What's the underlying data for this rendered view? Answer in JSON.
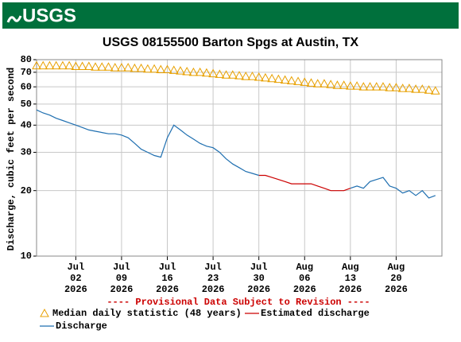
{
  "header": {
    "logo": "USGS"
  },
  "chart_data": {
    "type": "line",
    "title": "USGS 08155500 Barton Spgs at Austin, TX",
    "y_label": "Discharge, cubic feet per second",
    "note": "---- Provisional Data Subject to Revision ----",
    "yscale": "log",
    "grid": true,
    "ylim": [
      10,
      80
    ],
    "yticks": [
      10,
      20,
      30,
      40,
      50,
      60,
      70,
      80
    ],
    "xlim": [
      "2026-06-26",
      "2026-08-27"
    ],
    "xticks": [
      {
        "value": "2026-07-02",
        "label": "Jul 02 2026"
      },
      {
        "value": "2026-07-09",
        "label": "Jul 09 2026"
      },
      {
        "value": "2026-07-16",
        "label": "Jul 16 2026"
      },
      {
        "value": "2026-07-23",
        "label": "Jul 23 2026"
      },
      {
        "value": "2026-07-30",
        "label": "Jul 30 2026"
      },
      {
        "value": "2026-08-06",
        "label": "Aug 06 2026"
      },
      {
        "value": "2026-08-13",
        "label": "Aug 13 2026"
      },
      {
        "value": "2026-08-20",
        "label": "Aug 20 2026"
      }
    ],
    "x": [
      "2026-06-26",
      "2026-06-27",
      "2026-06-28",
      "2026-06-29",
      "2026-06-30",
      "2026-07-01",
      "2026-07-02",
      "2026-07-03",
      "2026-07-04",
      "2026-07-05",
      "2026-07-06",
      "2026-07-07",
      "2026-07-08",
      "2026-07-09",
      "2026-07-10",
      "2026-07-11",
      "2026-07-12",
      "2026-07-13",
      "2026-07-14",
      "2026-07-15",
      "2026-07-16",
      "2026-07-17",
      "2026-07-18",
      "2026-07-19",
      "2026-07-20",
      "2026-07-21",
      "2026-07-22",
      "2026-07-23",
      "2026-07-24",
      "2026-07-25",
      "2026-07-26",
      "2026-07-27",
      "2026-07-28",
      "2026-07-29",
      "2026-07-30",
      "2026-07-31",
      "2026-08-01",
      "2026-08-02",
      "2026-08-03",
      "2026-08-04",
      "2026-08-05",
      "2026-08-06",
      "2026-08-07",
      "2026-08-08",
      "2026-08-09",
      "2026-08-10",
      "2026-08-11",
      "2026-08-12",
      "2026-08-13",
      "2026-08-14",
      "2026-08-15",
      "2026-08-16",
      "2026-08-17",
      "2026-08-18",
      "2026-08-19",
      "2026-08-20",
      "2026-08-21",
      "2026-08-22",
      "2026-08-23",
      "2026-08-24",
      "2026-08-25",
      "2026-08-26"
    ],
    "series": [
      {
        "name": "Median daily statistic (48 years)",
        "color": "#e8a000",
        "marker": "triangle",
        "values": [
          75,
          75,
          75,
          75,
          75,
          75,
          74.5,
          74.5,
          74.5,
          74,
          74,
          74,
          73.5,
          73.5,
          73.5,
          73,
          73,
          72.5,
          72.5,
          72,
          72,
          71.5,
          71,
          70.5,
          70,
          70,
          69.5,
          69,
          68.5,
          68,
          68,
          67.5,
          67,
          67,
          66.5,
          66,
          65.5,
          65,
          64.5,
          64,
          63.5,
          63,
          62.5,
          62,
          62,
          61.5,
          61,
          61,
          60.5,
          60.5,
          60,
          60,
          60,
          60,
          59.5,
          59.5,
          59,
          59,
          58.5,
          58.5,
          58,
          57.5
        ]
      },
      {
        "name": "Estimated discharge",
        "color": "#cc0000",
        "marker": "line",
        "values": [
          null,
          null,
          null,
          null,
          null,
          null,
          null,
          null,
          null,
          null,
          null,
          null,
          null,
          null,
          null,
          null,
          null,
          null,
          null,
          null,
          null,
          null,
          null,
          null,
          null,
          null,
          null,
          null,
          null,
          null,
          null,
          null,
          null,
          null,
          23.5,
          23.5,
          23,
          22.5,
          22,
          21.5,
          21.5,
          21.5,
          21.5,
          21,
          20.5,
          20,
          20,
          20,
          20.5,
          null,
          null,
          null,
          null,
          null,
          null,
          null,
          null,
          null,
          null,
          null,
          null,
          null
        ]
      },
      {
        "name": "Discharge",
        "color": "#1f6fb0",
        "marker": "line",
        "values": [
          47,
          45.5,
          44.5,
          43,
          42,
          41,
          40,
          39,
          38,
          37.5,
          37,
          36.5,
          36.5,
          36,
          35,
          33,
          31,
          30,
          29,
          28.5,
          35,
          40,
          38,
          36,
          34.5,
          33,
          32,
          31.5,
          30,
          28,
          26.5,
          25.5,
          24.5,
          24,
          23.5,
          null,
          null,
          null,
          null,
          null,
          null,
          null,
          null,
          null,
          null,
          null,
          null,
          null,
          20.5,
          21,
          20.5,
          22,
          22.5,
          23,
          21,
          20.5,
          19.5,
          20,
          19,
          20,
          18.5,
          19
        ]
      }
    ]
  }
}
